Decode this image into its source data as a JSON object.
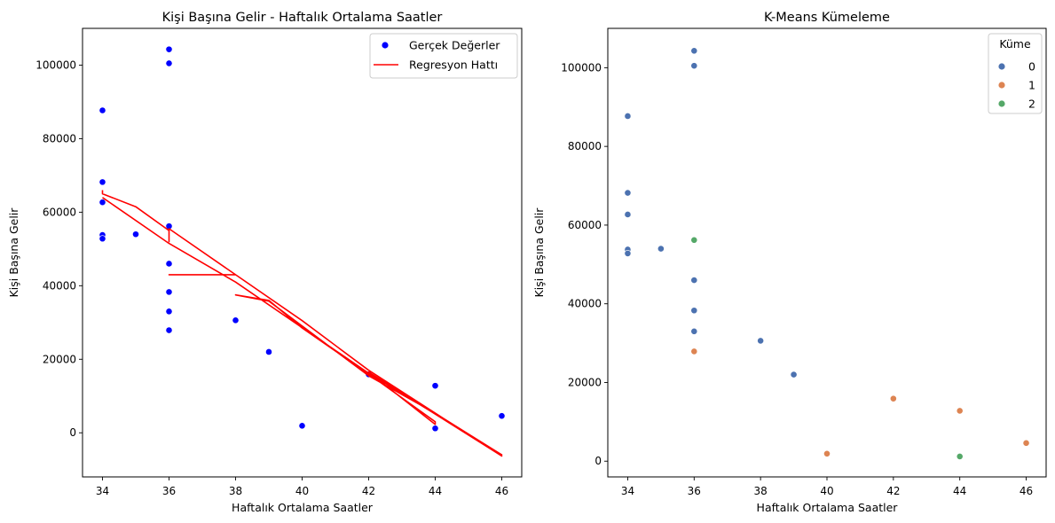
{
  "chart_data": [
    {
      "type": "scatter",
      "title": "Kişi Başına Gelir - Haftalık Ortalama Saatler",
      "xlabel": "Haftalık Ortalama Saatler",
      "ylabel": "Kişi Başına Gelir",
      "xlim": [
        33.4,
        46.6
      ],
      "ylim": [
        -12000,
        110000
      ],
      "xticks": [
        34,
        36,
        38,
        40,
        42,
        44,
        46
      ],
      "yticks": [
        0,
        20000,
        40000,
        60000,
        80000,
        100000
      ],
      "grid": false,
      "legend": {
        "position": "top-right",
        "entries": [
          {
            "label": "Gerçek Değerler",
            "color": "#0000ff",
            "marker": "dot"
          },
          {
            "label": "Regresyon Hattı",
            "color": "#ff0000",
            "marker": "line"
          }
        ]
      },
      "series": [
        {
          "name": "Gerçek Değerler",
          "kind": "scatter",
          "color": "#0000ff",
          "points": [
            [
              34,
              87700
            ],
            [
              34,
              68200
            ],
            [
              34,
              62700
            ],
            [
              34,
              53800
            ],
            [
              34,
              52800
            ],
            [
              35,
              54000
            ],
            [
              36,
              104300
            ],
            [
              36,
              100500
            ],
            [
              36,
              56200
            ],
            [
              36,
              46000
            ],
            [
              36,
              38300
            ],
            [
              36,
              33000
            ],
            [
              36,
              27900
            ],
            [
              38,
              30600
            ],
            [
              39,
              22000
            ],
            [
              40,
              1900
            ],
            [
              42,
              15900
            ],
            [
              44,
              12800
            ],
            [
              44,
              1200
            ],
            [
              46,
              4600
            ]
          ]
        },
        {
          "name": "Regresyon Hattı",
          "kind": "line",
          "color": "#ff0000",
          "points": [
            [
              34,
              66000
            ],
            [
              34,
              65000
            ],
            [
              35,
              61500
            ],
            [
              36,
              55000
            ],
            [
              36,
              52000
            ],
            [
              36,
              55500
            ],
            [
              38,
              43000
            ],
            [
              36,
              43000
            ],
            [
              38,
              43000
            ],
            [
              40,
              30500
            ],
            [
              42,
              17000
            ],
            [
              46,
              -6300
            ],
            [
              42,
              16500
            ],
            [
              44,
              2300
            ],
            [
              44,
              3000
            ],
            [
              42,
              16000
            ],
            [
              40,
              28500
            ],
            [
              39,
              36000
            ],
            [
              38,
              37500
            ],
            [
              39,
              35800
            ],
            [
              42,
              15500
            ],
            [
              44,
              5300
            ],
            [
              46,
              -6000
            ],
            [
              42,
              16200
            ],
            [
              38,
              41000
            ],
            [
              36,
              51500
            ],
            [
              34,
              64000
            ]
          ]
        }
      ]
    },
    {
      "type": "scatter",
      "title": "K-Means Kümeleme",
      "xlabel": "Haftalık Ortalama Saatler",
      "ylabel": "Kişi Başına Gelir",
      "xlim": [
        33.4,
        46.6
      ],
      "ylim": [
        -4000,
        110000
      ],
      "xticks": [
        34,
        36,
        38,
        40,
        42,
        44,
        46
      ],
      "yticks": [
        0,
        20000,
        40000,
        60000,
        80000,
        100000
      ],
      "grid": false,
      "legend": {
        "position": "top-right",
        "title": "Küme",
        "entries": [
          {
            "label": "0",
            "color": "#4c72b0",
            "marker": "dot"
          },
          {
            "label": "1",
            "color": "#dd8452",
            "marker": "dot"
          },
          {
            "label": "2",
            "color": "#55a868",
            "marker": "dot"
          }
        ]
      },
      "series": [
        {
          "name": "0",
          "kind": "scatter",
          "color": "#4c72b0",
          "points": [
            [
              34,
              87700
            ],
            [
              34,
              68200
            ],
            [
              34,
              62700
            ],
            [
              34,
              53800
            ],
            [
              34,
              52800
            ],
            [
              35,
              54000
            ],
            [
              36,
              104300
            ],
            [
              36,
              100500
            ],
            [
              36,
              46000
            ],
            [
              36,
              38300
            ],
            [
              36,
              33000
            ],
            [
              38,
              30600
            ],
            [
              39,
              22000
            ]
          ]
        },
        {
          "name": "1",
          "kind": "scatter",
          "color": "#dd8452",
          "points": [
            [
              36,
              27900
            ],
            [
              40,
              1900
            ],
            [
              42,
              15900
            ],
            [
              44,
              12800
            ],
            [
              46,
              4600
            ]
          ]
        },
        {
          "name": "2",
          "kind": "scatter",
          "color": "#55a868",
          "points": [
            [
              36,
              56200
            ],
            [
              44,
              1200
            ]
          ]
        }
      ]
    }
  ]
}
